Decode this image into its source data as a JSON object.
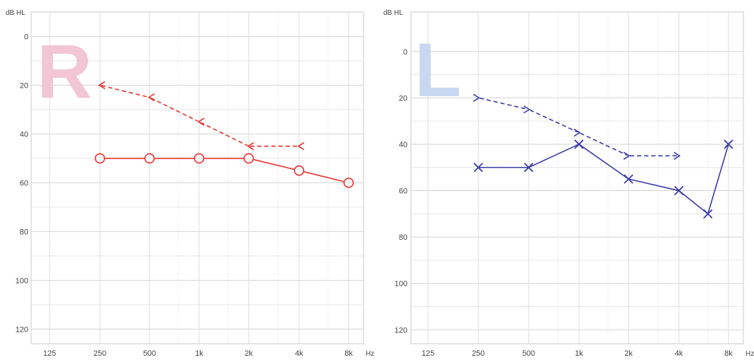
{
  "chart_data": [
    {
      "type": "line",
      "ear_letter": "R",
      "ear_letter_color": "#f2c6d4",
      "ylabel": "dB HL",
      "xunit": "Hz",
      "x_categories": [
        "125",
        "250",
        "500",
        "1k",
        "2k",
        "4k",
        "8k"
      ],
      "y_ticks": [
        "0",
        "20",
        "40",
        "60",
        "80",
        "100",
        "120"
      ],
      "ylim": [
        -10,
        126
      ],
      "y_inverted": true,
      "x_log_scale": true,
      "grid": true,
      "series": [
        {
          "conduction": "air",
          "marker": "circle",
          "line": "solid",
          "color": "#e8312f",
          "points": [
            {
              "hz": 250,
              "db": 50
            },
            {
              "hz": 500,
              "db": 50
            },
            {
              "hz": 1000,
              "db": 50
            },
            {
              "hz": 2000,
              "db": 50
            },
            {
              "hz": 4000,
              "db": 55
            },
            {
              "hz": 8000,
              "db": 60
            }
          ]
        },
        {
          "conduction": "bone",
          "marker": "open-left-angle",
          "line": "dashed",
          "color": "#e8312f",
          "points": [
            {
              "hz": 250,
              "db": 20
            },
            {
              "hz": 500,
              "db": 25
            },
            {
              "hz": 1000,
              "db": 35
            },
            {
              "hz": 2000,
              "db": 45
            },
            {
              "hz": 4000,
              "db": 45
            }
          ]
        }
      ]
    },
    {
      "type": "line",
      "ear_letter": "L",
      "ear_letter_color": "#c8d8f0",
      "ylabel": "dB HL",
      "xunit": "Hz",
      "x_categories": [
        "125",
        "250",
        "500",
        "1k",
        "2k",
        "4k",
        "8k"
      ],
      "y_ticks": [
        "0",
        "20",
        "40",
        "60",
        "80",
        "100",
        "120"
      ],
      "ylim": [
        -17,
        126
      ],
      "y_inverted": true,
      "x_log_scale": true,
      "grid": true,
      "series": [
        {
          "conduction": "air",
          "marker": "cross",
          "line": "solid",
          "color": "#3a3aa8",
          "points": [
            {
              "hz": 250,
              "db": 50
            },
            {
              "hz": 500,
              "db": 50
            },
            {
              "hz": 1000,
              "db": 40
            },
            {
              "hz": 2000,
              "db": 55
            },
            {
              "hz": 4000,
              "db": 60
            },
            {
              "hz": 6000,
              "db": 70
            },
            {
              "hz": 8000,
              "db": 40
            }
          ]
        },
        {
          "conduction": "bone",
          "marker": "open-right-angle",
          "line": "dashed",
          "color": "#3a3aa8",
          "points": [
            {
              "hz": 250,
              "db": 20
            },
            {
              "hz": 500,
              "db": 25
            },
            {
              "hz": 1000,
              "db": 35
            },
            {
              "hz": 2000,
              "db": 45
            },
            {
              "hz": 4000,
              "db": 45
            }
          ]
        }
      ]
    }
  ]
}
